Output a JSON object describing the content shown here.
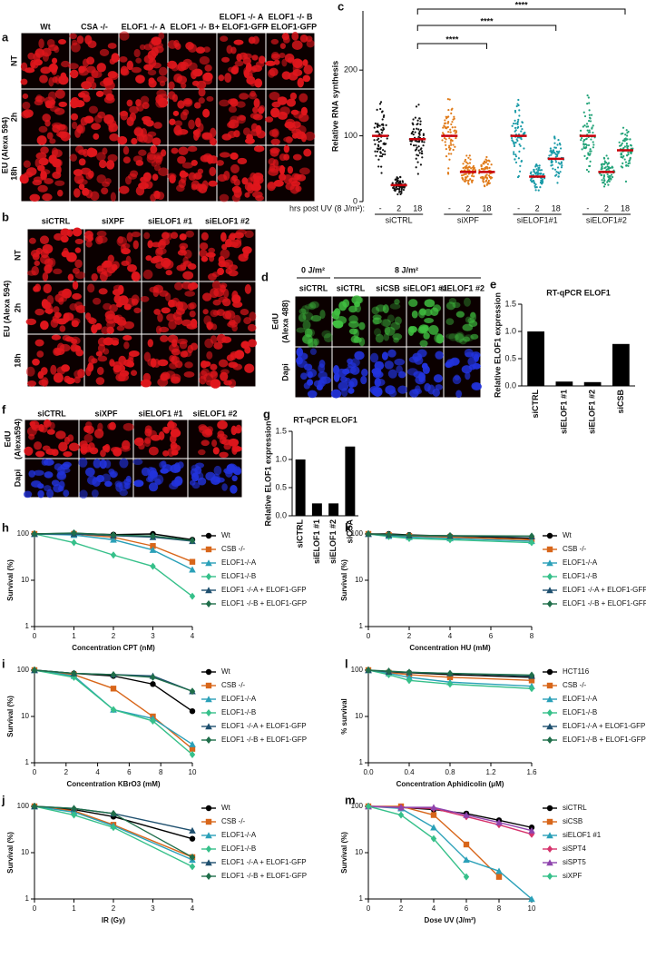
{
  "images": {
    "a": {
      "letter": "a",
      "label": "EU (Alexa 594)",
      "columns": [
        [
          "Wt"
        ],
        [
          "CSA -/-"
        ],
        [
          "ELOF1 -/- A"
        ],
        [
          "ELOF1 -/- B"
        ],
        [
          "ELOF1 -/- A",
          "+ ELOF1-GFP"
        ],
        [
          "ELOF1 -/- B",
          "+ ELOF1-GFP"
        ]
      ],
      "rows": [
        [
          "NT"
        ],
        [
          "2h"
        ],
        [
          "18h"
        ]
      ]
    },
    "b": {
      "letter": "b",
      "label": "EU (Alexa 594)",
      "columns": [
        [
          "siCTRL"
        ],
        [
          "siXPF"
        ],
        [
          "siELOF1 #1"
        ],
        [
          "siELOF1 #2"
        ]
      ],
      "rows": [
        [
          "NT"
        ],
        [
          "2h"
        ],
        [
          "18h"
        ]
      ]
    },
    "d": {
      "letter": "d",
      "groups": [
        "0 J/m²",
        "8 J/m²"
      ],
      "columns": [
        [
          "siCTRL"
        ],
        [
          "siCTRL"
        ],
        [
          "siCSB"
        ],
        [
          "siELOF1 #1"
        ],
        [
          "siELOF1 #2"
        ]
      ],
      "rows": [
        [
          "EdU",
          "(Alexa 488)"
        ],
        [
          "Dapi"
        ]
      ]
    },
    "f": {
      "letter": "f",
      "columns": [
        [
          "siCTRL"
        ],
        [
          "siXPF"
        ],
        [
          "siELOF1 #1"
        ],
        [
          "siELOF1 #2"
        ]
      ],
      "rows": [
        [
          "EdU",
          "(Alexa594)"
        ],
        [
          "Dapi"
        ]
      ]
    }
  },
  "chart_data": [
    {
      "type": "dot",
      "letter": "c",
      "ylabel": "Relative RNA synthesis",
      "ylim": [
        0,
        290
      ],
      "yticks": [
        0,
        100,
        200
      ],
      "x_prefix": "hrs post UV (8 J/m²):",
      "timepoints": [
        "-",
        "2",
        "18"
      ],
      "groups": [
        {
          "name": "siCTRL",
          "color": "#111111",
          "medians": [
            100,
            25,
            95
          ]
        },
        {
          "name": "siXPF",
          "color": "#e07b1a",
          "medians": [
            100,
            45,
            45
          ]
        },
        {
          "name": "siELOF1#1",
          "color": "#1a9ba8",
          "medians": [
            100,
            38,
            65
          ]
        },
        {
          "name": "siELOF1#2",
          "color": "#22a378",
          "medians": [
            100,
            45,
            78
          ]
        }
      ],
      "brackets": [
        {
          "from": 0,
          "to": 1,
          "label": "****"
        },
        {
          "from": 0,
          "to": 2,
          "label": "****"
        },
        {
          "from": 0,
          "to": 3,
          "label": "****"
        }
      ]
    },
    {
      "type": "bar",
      "letter": "e",
      "title": "RT-qPCR ELOF1",
      "ylabel": "Relative ELOF1 expression",
      "categories": [
        "siCTRL",
        "siELOF1 #1",
        "siELOF1 #2",
        "siCSB"
      ],
      "values": [
        1.0,
        0.08,
        0.07,
        0.77
      ],
      "color": "#000000",
      "ylim": [
        0,
        1.5
      ],
      "yticks": [
        {
          "value": 0,
          "label": "0.0"
        },
        0.5,
        {
          "value": 1,
          "label": "1.0"
        },
        1.5
      ]
    },
    {
      "type": "bar",
      "letter": "g",
      "title": "RT-qPCR ELOF1",
      "ylabel": "Relative ELOF1 expression",
      "categories": [
        "siCTRL",
        "siELOF1 #1",
        "siELOF1 #2",
        "siCSA"
      ],
      "values": [
        1.0,
        0.22,
        0.22,
        1.23
      ],
      "color": "#000000",
      "ylim": [
        0,
        1.5
      ],
      "yticks": [
        {
          "value": 0,
          "label": "0.0"
        },
        0.5,
        {
          "value": 1,
          "label": "1.0"
        },
        1.5
      ]
    },
    {
      "type": "line",
      "letter": "h",
      "log": true,
      "xlabel": "Concentration CPT (nM)",
      "ylabel": "Survival (%)",
      "x": [
        0,
        1,
        2,
        3,
        4
      ],
      "xlim": [
        0,
        4
      ],
      "xticks": [
        0,
        1,
        2,
        3,
        4
      ],
      "ylim": [
        1,
        100
      ],
      "yticks": [
        1,
        10,
        100
      ],
      "series": [
        {
          "name": "Wt",
          "color": "#000000",
          "values": [
            100,
            103,
            97,
            100,
            75
          ]
        },
        {
          "name": "CSB -/-",
          "color": "#d8661a",
          "values": [
            100,
            100,
            85,
            55,
            25
          ]
        },
        {
          "name": "ELOF1-/-A",
          "color": "#2aa0b8",
          "values": [
            100,
            95,
            75,
            45,
            17
          ]
        },
        {
          "name": "ELOF1-/-B",
          "color": "#36c08a",
          "values": [
            100,
            65,
            35,
            20,
            4.5
          ]
        },
        {
          "name": "ELOF1 -/-A + ELOF1-GFP",
          "color": "#1e4f6e",
          "values": [
            100,
            100,
            92,
            85,
            70
          ]
        },
        {
          "name": "ELOF1 -/-B + ELOF1-GFP",
          "color": "#1f6e4a",
          "values": [
            100,
            105,
            95,
            90,
            72
          ]
        }
      ]
    },
    {
      "type": "line",
      "letter": "k",
      "log": true,
      "xlabel": "Concentration HU (mM)",
      "ylabel": "Survival (%)",
      "x": [
        0,
        1,
        2,
        4,
        8
      ],
      "xlim": [
        0,
        8
      ],
      "xticks": [
        0,
        2,
        4,
        6,
        8
      ],
      "ylim": [
        1,
        100
      ],
      "yticks": [
        1,
        10,
        100
      ],
      "series": [
        {
          "name": "Wt",
          "color": "#000000",
          "values": [
            100,
            100,
            95,
            90,
            80
          ]
        },
        {
          "name": "CSB -/-",
          "color": "#d8661a",
          "values": [
            100,
            95,
            90,
            85,
            75
          ]
        },
        {
          "name": "ELOF1-/-A",
          "color": "#2aa0b8",
          "values": [
            100,
            90,
            85,
            80,
            70
          ]
        },
        {
          "name": "ELOF1-/-B",
          "color": "#36c08a",
          "values": [
            100,
            88,
            80,
            75,
            65
          ]
        },
        {
          "name": "ELOF1 -/-A + ELOF1-GFP",
          "color": "#1e4f6e",
          "values": [
            100,
            95,
            92,
            90,
            88
          ]
        },
        {
          "name": "ELOF1 -/-B + ELOF1-GFP",
          "color": "#1f6e4a",
          "values": [
            100,
            97,
            93,
            92,
            90
          ]
        }
      ]
    },
    {
      "type": "line",
      "letter": "i",
      "log": true,
      "xlabel": "Concentration KBrO3 (mM)",
      "ylabel": "Survival (%)",
      "x": [
        0,
        2.5,
        5,
        7.5,
        10
      ],
      "xlim": [
        0,
        10
      ],
      "xticks": [
        0,
        2,
        4,
        6,
        8,
        10
      ],
      "ylim": [
        1,
        100
      ],
      "yticks": [
        1,
        10,
        100
      ],
      "series": [
        {
          "name": "Wt",
          "color": "#000000",
          "values": [
            100,
            85,
            75,
            50,
            13
          ]
        },
        {
          "name": "CSB -/-",
          "color": "#d8661a",
          "values": [
            100,
            80,
            40,
            10,
            2
          ]
        },
        {
          "name": "ELOF1-/-A",
          "color": "#2aa0b8",
          "values": [
            100,
            75,
            14,
            9,
            2.5
          ]
        },
        {
          "name": "ELOF1-/-B",
          "color": "#36c08a",
          "values": [
            100,
            70,
            14,
            8,
            1.5
          ]
        },
        {
          "name": "ELOF1 -/-A + ELOF1-GFP",
          "color": "#1e4f6e",
          "values": [
            100,
            85,
            80,
            75,
            35
          ]
        },
        {
          "name": "ELOF1 -/-B + ELOF1-GFP",
          "color": "#1f6e4a",
          "values": [
            100,
            85,
            80,
            70,
            35
          ]
        }
      ]
    },
    {
      "type": "line",
      "letter": "l",
      "log": true,
      "xlabel": "Concentration Aphidicolin (μM)",
      "ylabel": "% survival",
      "x": [
        0,
        0.2,
        0.4,
        0.8,
        1.6
      ],
      "xlim": [
        0,
        1.6
      ],
      "xticks": [
        {
          "value": 0,
          "label": "0.0"
        },
        0.4,
        0.8,
        1.2,
        1.6
      ],
      "ylim": [
        1,
        100
      ],
      "yticks": [
        1,
        10,
        100
      ],
      "series": [
        {
          "name": "HCT116",
          "color": "#000000",
          "values": [
            100,
            90,
            88,
            80,
            70
          ]
        },
        {
          "name": "CSB -/-",
          "color": "#d8661a",
          "values": [
            100,
            88,
            80,
            70,
            60
          ]
        },
        {
          "name": "ELOF1-/-A",
          "color": "#2aa0b8",
          "values": [
            100,
            85,
            70,
            55,
            45
          ]
        },
        {
          "name": "ELOF1-/-B",
          "color": "#36c08a",
          "values": [
            100,
            80,
            60,
            50,
            40
          ]
        },
        {
          "name": "ELOF1-/-A + ELOF1-GFP",
          "color": "#1e4f6e",
          "values": [
            100,
            92,
            90,
            85,
            75
          ]
        },
        {
          "name": "ELOF1-/-B + ELOF1-GFP",
          "color": "#1f6e4a",
          "values": [
            100,
            95,
            90,
            85,
            78
          ]
        }
      ]
    },
    {
      "type": "line",
      "letter": "j",
      "log": true,
      "xlabel": "IR (Gy)",
      "ylabel": "Survival (%)",
      "x": [
        0,
        1,
        2,
        4
      ],
      "xlim": [
        0,
        4
      ],
      "xticks": [
        0,
        1,
        2,
        3,
        4
      ],
      "ylim": [
        1,
        100
      ],
      "yticks": [
        1,
        10,
        100
      ],
      "series": [
        {
          "name": "Wt",
          "color": "#000000",
          "values": [
            100,
            85,
            60,
            20
          ]
        },
        {
          "name": "CSB -/-",
          "color": "#d8661a",
          "values": [
            100,
            80,
            40,
            8
          ]
        },
        {
          "name": "ELOF1-/-A",
          "color": "#2aa0b8",
          "values": [
            100,
            75,
            38,
            7
          ]
        },
        {
          "name": "ELOF1-/-B",
          "color": "#36c08a",
          "values": [
            100,
            65,
            35,
            5
          ]
        },
        {
          "name": "ELOF1 -/-A + ELOF1-GFP",
          "color": "#1e4f6e",
          "values": [
            100,
            90,
            70,
            30
          ]
        },
        {
          "name": "ELOF1 -/-B + ELOF1-GFP",
          "color": "#1f6e4a",
          "values": [
            100,
            90,
            70,
            8
          ]
        }
      ]
    },
    {
      "type": "line",
      "letter": "m",
      "log": true,
      "xlabel": "Dose UV (J/m²)",
      "ylabel": "Survival (%)",
      "x": [
        0,
        2,
        4,
        6,
        8,
        10
      ],
      "xlim": [
        0,
        10
      ],
      "xticks": [
        0,
        2,
        4,
        6,
        8,
        10
      ],
      "ylim": [
        1,
        100
      ],
      "yticks": [
        1,
        10,
        100
      ],
      "series": [
        {
          "name": "siCTRL",
          "color": "#000000",
          "values": [
            100,
            95,
            85,
            70,
            50,
            35
          ]
        },
        {
          "name": "siCSB",
          "color": "#d8661a",
          "values": [
            100,
            100,
            65,
            15,
            3,
            null
          ]
        },
        {
          "name": "siELOF1 #1",
          "color": "#2aa0b8",
          "values": [
            100,
            90,
            35,
            7,
            4,
            1
          ]
        },
        {
          "name": "siSPT4",
          "color": "#d6336c",
          "values": [
            100,
            95,
            90,
            60,
            40,
            25
          ]
        },
        {
          "name": "siSPT5",
          "color": "#8e44ad",
          "values": [
            100,
            95,
            95,
            65,
            45,
            30
          ]
        },
        {
          "name": "siXPF",
          "color": "#36c08a",
          "values": [
            100,
            65,
            20,
            3,
            null,
            null
          ]
        }
      ]
    }
  ]
}
